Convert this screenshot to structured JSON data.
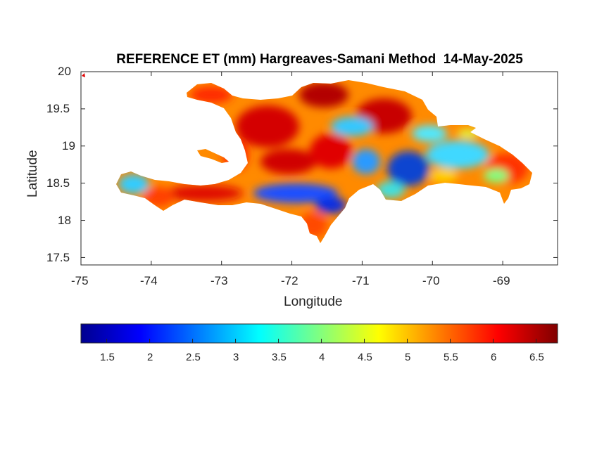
{
  "title": "REFERENCE ET (mm) Hargreaves-Samani Method  14-May-2025",
  "xlabel": "Longitude",
  "ylabel": "Latitude",
  "x_ticks": [
    "-75",
    "-74",
    "-73",
    "-72",
    "-71",
    "-70",
    "-69"
  ],
  "y_ticks": [
    "20",
    "19.5",
    "19",
    "18.5",
    "18",
    "17.5"
  ],
  "colorbar": {
    "ticks": [
      "1.5",
      "2",
      "2.5",
      "3",
      "3.5",
      "4",
      "4.5",
      "5",
      "5.5",
      "6",
      "6.5"
    ],
    "range": [
      1.2,
      6.75
    ],
    "colormap": "jet"
  },
  "map": {
    "lon_range": [
      -75,
      -68.22
    ],
    "lat_range": [
      17.4,
      20
    ],
    "region": "Hispaniola (Haiti and Dominican Republic)",
    "hot_areas": "northern and western Haiti, north-central Dominican Republic, southeast coast",
    "cool_areas": "Cordillera Central, Enriquillo basin area, eastern interior"
  }
}
